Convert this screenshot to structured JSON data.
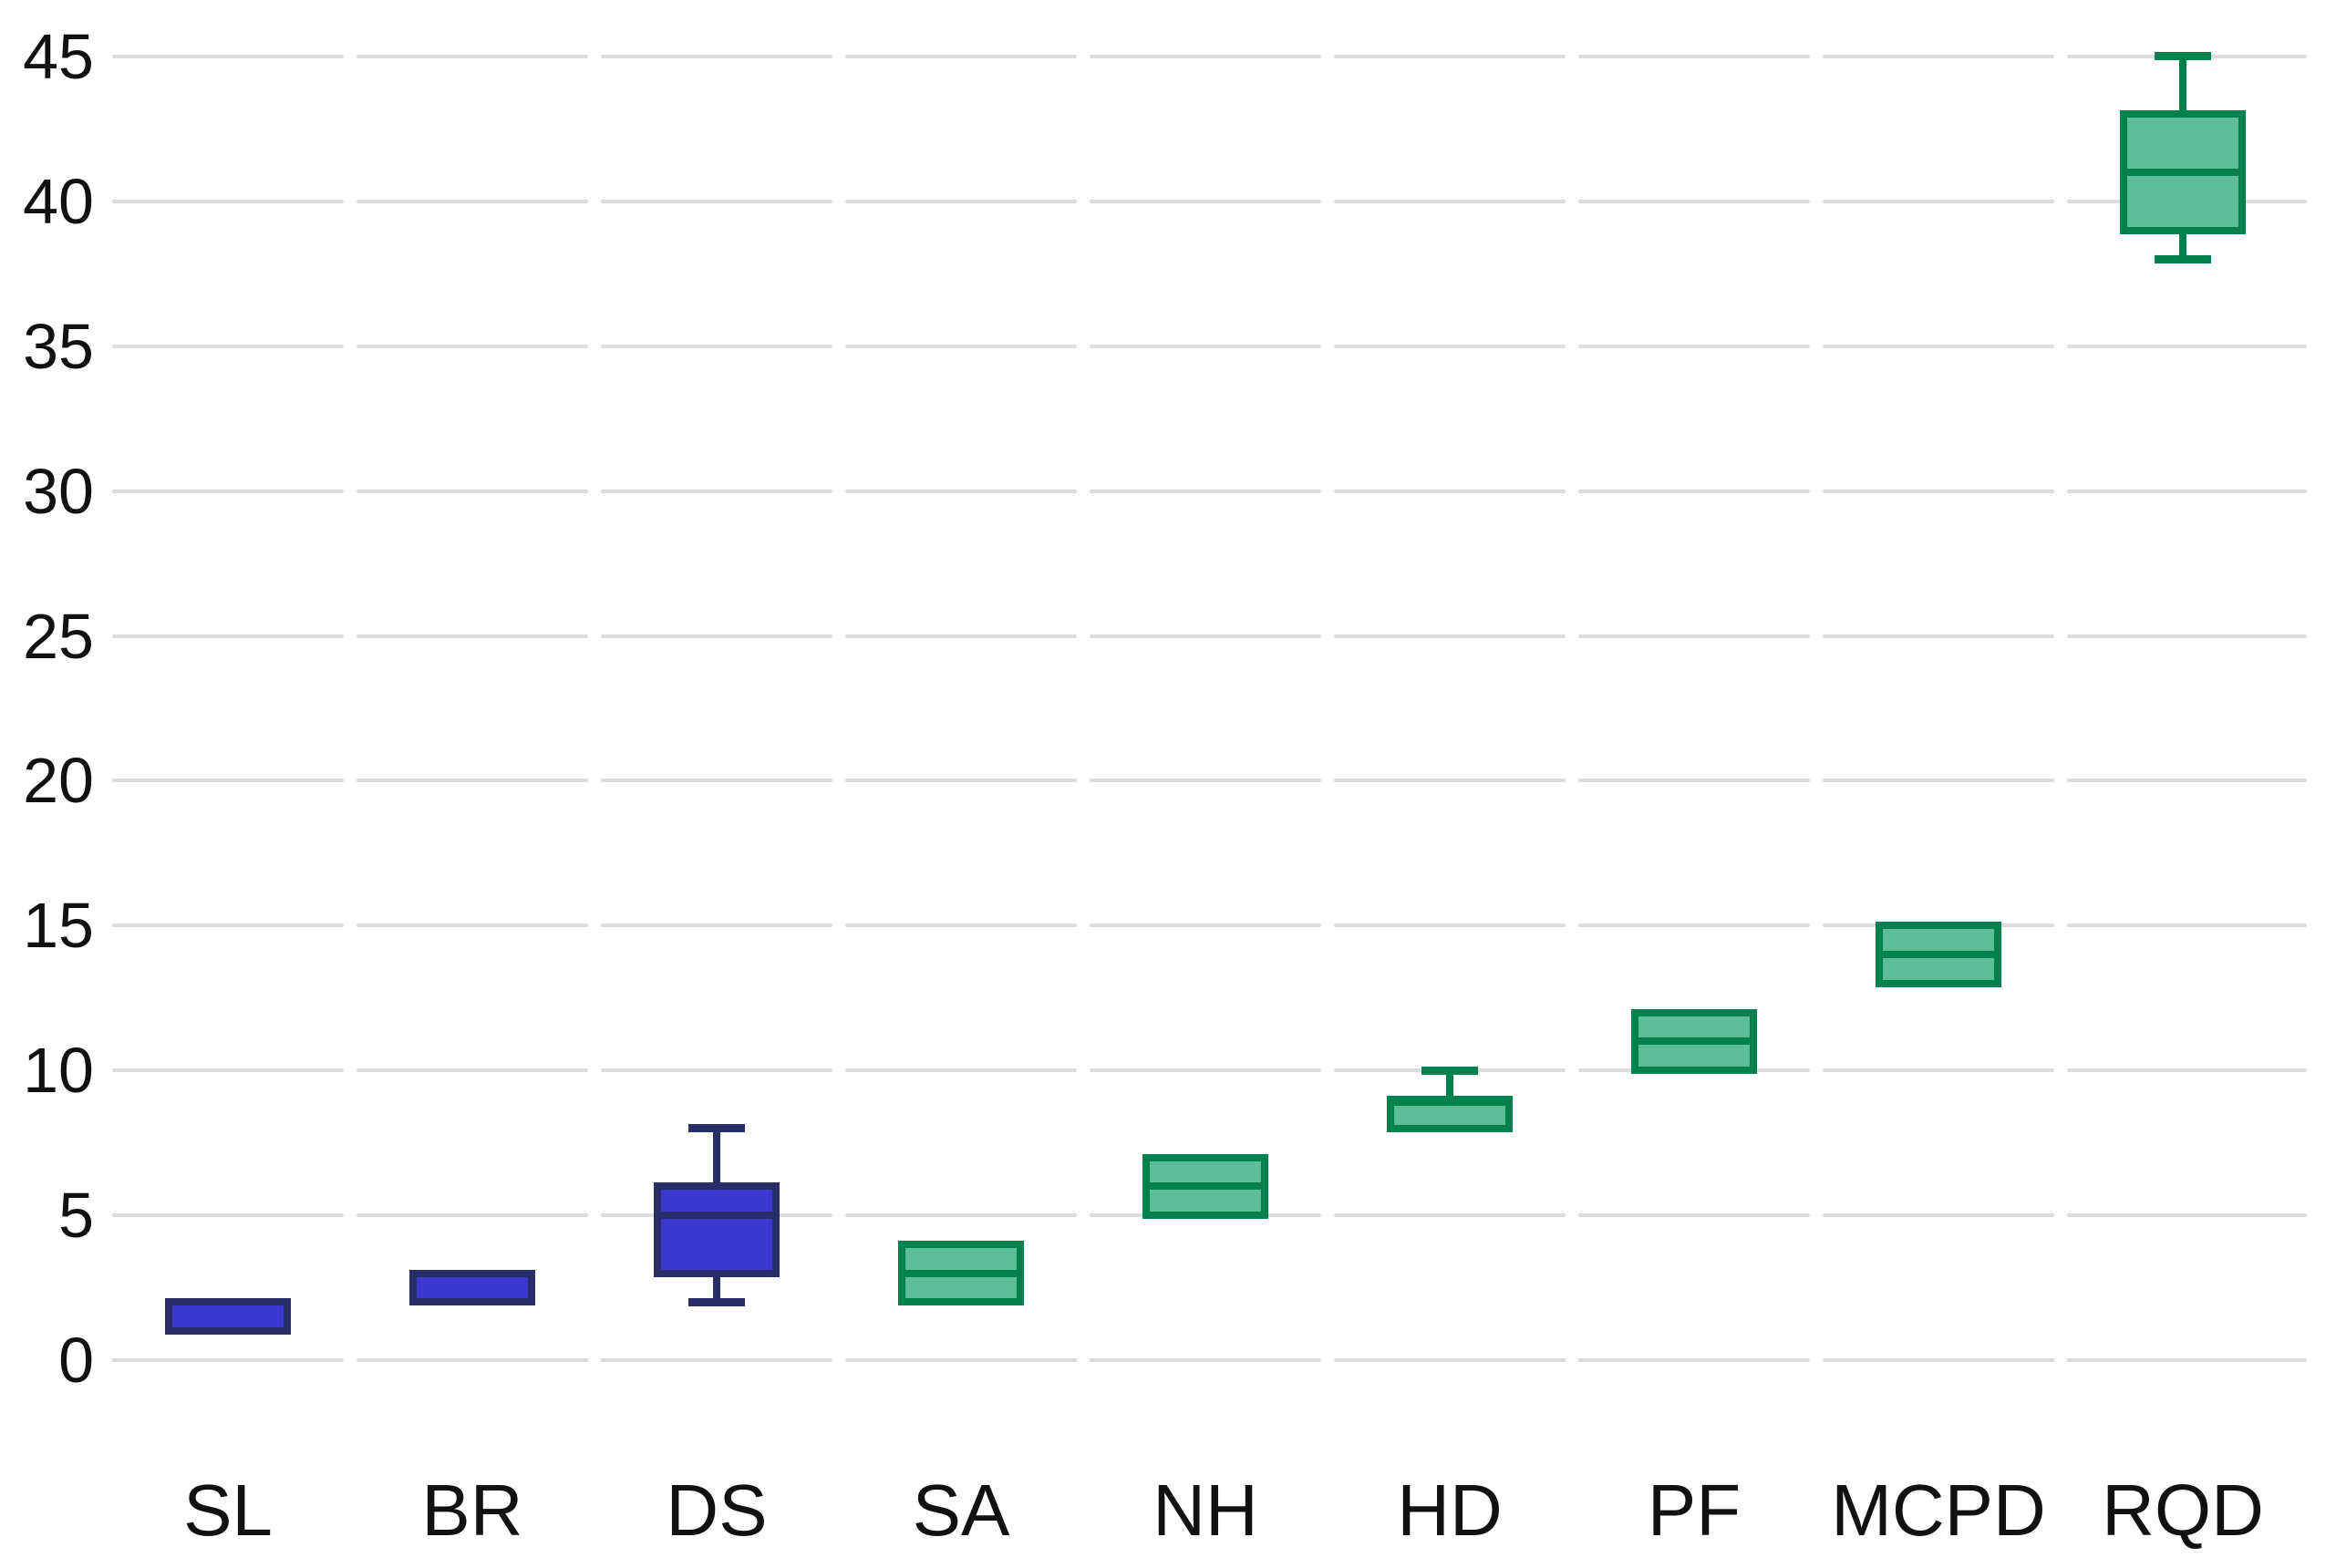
{
  "chart_data": {
    "type": "box",
    "title": "",
    "xlabel": "",
    "ylabel": "",
    "categories": [
      "SL",
      "BR",
      "DS",
      "SA",
      "NH",
      "HD",
      "PF",
      "MCPD",
      "RQD"
    ],
    "series": [
      {
        "name": "SL",
        "group": "blue",
        "min": 1,
        "q1": 1,
        "median": null,
        "q3": 2,
        "max": 2
      },
      {
        "name": "BR",
        "group": "blue",
        "min": 2,
        "q1": 2,
        "median": null,
        "q3": 3,
        "max": 3
      },
      {
        "name": "DS",
        "group": "blue",
        "min": 2,
        "q1": 3,
        "median": 5,
        "q3": 6,
        "max": 8
      },
      {
        "name": "SA",
        "group": "green",
        "min": 2,
        "q1": 2,
        "median": 3,
        "q3": 4,
        "max": 4
      },
      {
        "name": "NH",
        "group": "green",
        "min": 5,
        "q1": 5,
        "median": 6,
        "q3": 7,
        "max": 7
      },
      {
        "name": "HD",
        "group": "green",
        "min": 8,
        "q1": 8,
        "median": 8.9,
        "q3": 9,
        "max": 10
      },
      {
        "name": "PF",
        "group": "green",
        "min": 10,
        "q1": 10,
        "median": 11,
        "q3": 12,
        "max": 12
      },
      {
        "name": "MCPD",
        "group": "green",
        "min": 13,
        "q1": 13,
        "median": 14,
        "q3": 15,
        "max": 15
      },
      {
        "name": "RQD",
        "group": "green",
        "min": 38,
        "q1": 39,
        "median": 41,
        "q3": 43,
        "max": 45
      }
    ],
    "ylim": [
      0,
      45
    ],
    "yticks": [
      0,
      5,
      10,
      15,
      20,
      25,
      30,
      35,
      40,
      45
    ],
    "ytick_labels": [
      "0",
      "5",
      "10",
      "15",
      "20",
      "25",
      "30",
      "35",
      "40",
      "45"
    ],
    "grid": true,
    "legend": false,
    "colors": {
      "blue_fill": "#3a39cf",
      "blue_border": "#272e68",
      "green_fill": "#5cbd98",
      "green_border": "#00814e",
      "gridline": "#dcdcdc",
      "text": "#111111",
      "background": "#ffffff"
    }
  }
}
